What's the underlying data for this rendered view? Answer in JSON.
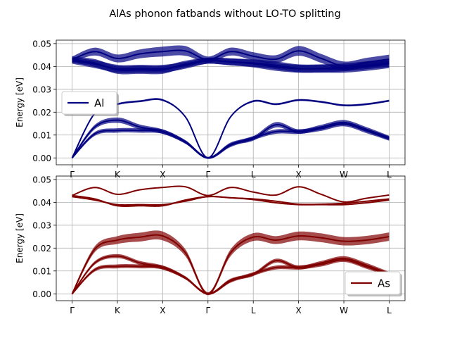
{
  "title": "AlAs phonon fatbands without LO-TO splitting",
  "chart_data": [
    {
      "type": "line",
      "ylabel": "Energy [eV]",
      "ylim": [
        -0.003,
        0.0515
      ],
      "yticks": [
        0.0,
        0.01,
        0.02,
        0.03,
        0.04,
        0.05
      ],
      "ytick_labels": [
        "0.00",
        "0.01",
        "0.02",
        "0.03",
        "0.04",
        "0.05"
      ],
      "xticks": [
        0,
        1,
        2,
        3,
        4,
        5,
        6,
        7
      ],
      "xtick_labels": [
        "Γ",
        "K",
        "X",
        "Γ",
        "L",
        "X",
        "W",
        "L"
      ],
      "xlim": [
        -0.35,
        7.35
      ],
      "grid": true,
      "legend": {
        "label": "Al",
        "loc": "upper-left"
      },
      "color": "#000080",
      "x": [
        0,
        0.5,
        1,
        1.5,
        2,
        2.5,
        3,
        3.5,
        4,
        4.5,
        5,
        5.5,
        6,
        6.5,
        7
      ],
      "branches": [
        {
          "values": [
            0,
            0.0195,
            0.0235,
            0.0248,
            0.0253,
            0.018,
            0,
            0.018,
            0.0248,
            0.0235,
            0.0253,
            0.0245,
            0.023,
            0.0235,
            0.025
          ],
          "weights": [
            0.1,
            0.15,
            0.2,
            0.2,
            0.2,
            0.15,
            0.1,
            0.15,
            0.2,
            0.2,
            0.2,
            0.2,
            0.2,
            0.2,
            0.2
          ]
        },
        {
          "values": [
            0,
            0.0135,
            0.0165,
            0.0135,
            0.0115,
            0.007,
            0,
            0.006,
            0.0085,
            0.0145,
            0.0115,
            0.0135,
            0.0155,
            0.0125,
            0.0087
          ],
          "weights": [
            0.2,
            0.45,
            0.55,
            0.5,
            0.45,
            0.35,
            0.2,
            0.35,
            0.45,
            0.55,
            0.45,
            0.45,
            0.5,
            0.45,
            0.45
          ]
        },
        {
          "values": [
            0,
            0.0105,
            0.012,
            0.012,
            0.0115,
            0.007,
            0,
            0.0055,
            0.0087,
            0.0115,
            0.0115,
            0.0128,
            0.0148,
            0.0118,
            0.0085
          ],
          "weights": [
            0.2,
            0.4,
            0.45,
            0.45,
            0.45,
            0.35,
            0.2,
            0.35,
            0.4,
            0.45,
            0.45,
            0.45,
            0.45,
            0.45,
            0.45
          ]
        },
        {
          "values": [
            0.043,
            0.0465,
            0.0435,
            0.0455,
            0.0465,
            0.0468,
            0.043,
            0.0465,
            0.0445,
            0.0432,
            0.0468,
            0.0435,
            0.0402,
            0.0418,
            0.0432
          ],
          "weights": [
            0.6,
            0.8,
            0.8,
            0.9,
            1.0,
            1.0,
            0.6,
            0.8,
            0.8,
            0.8,
            1.0,
            0.9,
            0.9,
            0.9,
            0.9
          ]
        },
        {
          "values": [
            0.043,
            0.0415,
            0.0385,
            0.0385,
            0.0385,
            0.041,
            0.0425,
            0.042,
            0.0415,
            0.0405,
            0.0392,
            0.0392,
            0.0396,
            0.0405,
            0.0415
          ],
          "weights": [
            0.6,
            0.8,
            0.8,
            0.8,
            0.8,
            0.7,
            0.6,
            0.7,
            0.75,
            0.8,
            0.8,
            0.8,
            0.8,
            0.8,
            0.8
          ]
        },
        {
          "values": [
            0.0425,
            0.041,
            0.039,
            0.039,
            0.039,
            0.0405,
            0.0425,
            0.042,
            0.0412,
            0.0398,
            0.039,
            0.039,
            0.039,
            0.0398,
            0.041
          ],
          "weights": [
            0.6,
            0.8,
            0.8,
            0.8,
            0.8,
            0.7,
            0.6,
            0.7,
            0.75,
            0.8,
            0.8,
            0.8,
            0.8,
            0.8,
            0.8
          ]
        }
      ]
    },
    {
      "type": "line",
      "ylabel": "Energy [eV]",
      "ylim": [
        -0.003,
        0.0515
      ],
      "yticks": [
        0.0,
        0.01,
        0.02,
        0.03,
        0.04,
        0.05
      ],
      "ytick_labels": [
        "0.00",
        "0.01",
        "0.02",
        "0.03",
        "0.04",
        "0.05"
      ],
      "xticks": [
        0,
        1,
        2,
        3,
        4,
        5,
        6,
        7
      ],
      "xtick_labels": [
        "Γ",
        "K",
        "X",
        "Γ",
        "L",
        "X",
        "W",
        "L"
      ],
      "xlim": [
        -0.35,
        7.35
      ],
      "grid": true,
      "legend": {
        "label": "As",
        "loc": "lower-right"
      },
      "color": "#800000",
      "x": [
        0,
        0.5,
        1,
        1.5,
        2,
        2.5,
        3,
        3.5,
        4,
        4.5,
        5,
        5.5,
        6,
        6.5,
        7
      ],
      "branches": [
        {
          "values": [
            0,
            0.0195,
            0.0235,
            0.0248,
            0.0253,
            0.018,
            0,
            0.018,
            0.0248,
            0.0235,
            0.0253,
            0.0245,
            0.023,
            0.0235,
            0.025
          ],
          "weights": [
            0.3,
            0.6,
            0.8,
            0.9,
            0.9,
            0.7,
            0.3,
            0.7,
            0.8,
            0.8,
            0.9,
            0.9,
            0.85,
            0.85,
            0.85
          ]
        },
        {
          "values": [
            0,
            0.0135,
            0.0165,
            0.0135,
            0.0115,
            0.007,
            0,
            0.006,
            0.0085,
            0.0145,
            0.0115,
            0.0135,
            0.0155,
            0.0125,
            0.0087
          ],
          "weights": [
            0.2,
            0.35,
            0.4,
            0.4,
            0.4,
            0.3,
            0.2,
            0.3,
            0.35,
            0.4,
            0.4,
            0.4,
            0.45,
            0.45,
            0.4
          ]
        },
        {
          "values": [
            0,
            0.0105,
            0.012,
            0.012,
            0.0115,
            0.007,
            0,
            0.0055,
            0.0087,
            0.0115,
            0.0115,
            0.0128,
            0.0148,
            0.0118,
            0.0085
          ],
          "weights": [
            0.2,
            0.35,
            0.4,
            0.4,
            0.4,
            0.3,
            0.2,
            0.3,
            0.35,
            0.4,
            0.4,
            0.4,
            0.4,
            0.4,
            0.4
          ]
        },
        {
          "values": [
            0.043,
            0.0465,
            0.0435,
            0.0455,
            0.0465,
            0.0468,
            0.043,
            0.0465,
            0.0445,
            0.0432,
            0.0468,
            0.0435,
            0.0402,
            0.0418,
            0.0432
          ],
          "weights": [
            0.05,
            0.05,
            0.05,
            0.05,
            0.05,
            0.05,
            0.05,
            0.05,
            0.05,
            0.05,
            0.05,
            0.05,
            0.05,
            0.05,
            0.05
          ]
        },
        {
          "values": [
            0.043,
            0.0415,
            0.0385,
            0.0385,
            0.0385,
            0.041,
            0.0425,
            0.042,
            0.0415,
            0.0405,
            0.0392,
            0.0392,
            0.0396,
            0.0405,
            0.0415
          ],
          "weights": [
            0.1,
            0.1,
            0.1,
            0.1,
            0.1,
            0.1,
            0.1,
            0.1,
            0.1,
            0.1,
            0.1,
            0.1,
            0.1,
            0.1,
            0.1
          ]
        },
        {
          "values": [
            0.0425,
            0.041,
            0.039,
            0.039,
            0.039,
            0.0405,
            0.0425,
            0.042,
            0.0412,
            0.0398,
            0.039,
            0.039,
            0.039,
            0.0398,
            0.041
          ],
          "weights": [
            0.1,
            0.1,
            0.1,
            0.1,
            0.1,
            0.1,
            0.1,
            0.1,
            0.1,
            0.1,
            0.1,
            0.1,
            0.1,
            0.1,
            0.1
          ]
        }
      ]
    }
  ]
}
